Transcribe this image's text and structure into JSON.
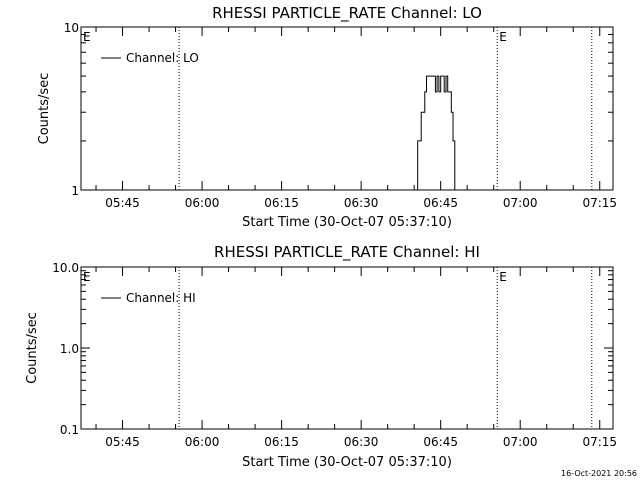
{
  "footer": {
    "timestamp": "16-Oct-2021 20:56"
  },
  "chart_data": [
    {
      "type": "line",
      "title": "RHESSI PARTICLE_RATE Channel: LO",
      "xlabel": "Start Time (30-Oct-07 05:37:10)",
      "ylabel": "Counts/sec",
      "yscale": "log",
      "ylim": [
        1,
        10
      ],
      "xlim": [
        "05:37:10",
        "07:17:30"
      ],
      "x_ticks": [
        "05:45",
        "06:00",
        "06:15",
        "06:30",
        "06:45",
        "07:00",
        "07:15"
      ],
      "y_ticks": [
        "1",
        "10"
      ],
      "legend": {
        "entries": [
          "Channel: LO"
        ],
        "placement": "top-left"
      },
      "markers": [
        {
          "label": "E",
          "time": "05:37:10"
        },
        {
          "label": "",
          "time": "05:55:40"
        },
        {
          "label": "E",
          "time": "06:55:40"
        },
        {
          "label": "",
          "time": "07:13:30"
        }
      ],
      "series": [
        {
          "name": "Channel: LO",
          "x": [
            "06:40:20",
            "06:40:40",
            "06:41:00",
            "06:41:20",
            "06:41:40",
            "06:42:00",
            "06:42:20",
            "06:42:40",
            "06:43:00",
            "06:43:20",
            "06:43:40",
            "06:44:00",
            "06:44:20",
            "06:44:40",
            "06:45:00",
            "06:45:20",
            "06:45:40",
            "06:46:00",
            "06:46:20",
            "06:46:40",
            "06:47:00",
            "06:47:20",
            "06:47:40"
          ],
          "values": [
            1.0,
            2.0,
            2.0,
            3.0,
            3.0,
            4.0,
            5.0,
            5.0,
            5.0,
            5.0,
            5.0,
            4.0,
            5.0,
            4.0,
            5.0,
            5.0,
            4.0,
            5.0,
            4.0,
            4.0,
            3.0,
            2.0,
            1.0
          ]
        }
      ]
    },
    {
      "type": "line",
      "title": "RHESSI PARTICLE_RATE Channel: HI",
      "xlabel": "Start Time (30-Oct-07 05:37:10)",
      "ylabel": "Counts/sec",
      "yscale": "log",
      "ylim": [
        0.1,
        10
      ],
      "xlim": [
        "05:37:10",
        "07:17:30"
      ],
      "x_ticks": [
        "05:45",
        "06:00",
        "06:15",
        "06:30",
        "06:45",
        "07:00",
        "07:15"
      ],
      "y_ticks": [
        "0.1",
        "1.0",
        "10.0"
      ],
      "legend": {
        "entries": [
          "Channel: HI"
        ],
        "placement": "top-left"
      },
      "markers": [
        {
          "label": "E",
          "time": "05:37:10"
        },
        {
          "label": "",
          "time": "05:55:40"
        },
        {
          "label": "E",
          "time": "06:55:40"
        },
        {
          "label": "",
          "time": "07:13:30"
        }
      ],
      "series": [
        {
          "name": "Channel: HI",
          "x": [],
          "values": []
        }
      ]
    }
  ]
}
